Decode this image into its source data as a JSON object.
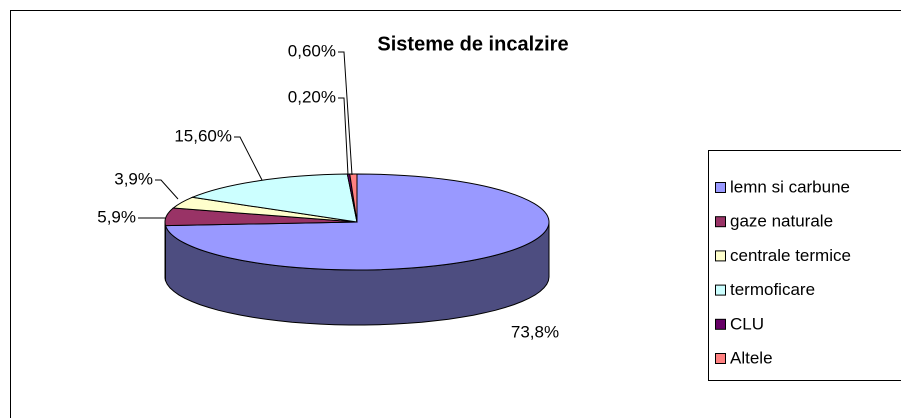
{
  "chart_data": {
    "type": "pie",
    "title": "Sisteme de incalzire",
    "categories": [
      "lemn si carbune",
      "gaze naturale",
      "centrale termice",
      "termoficare",
      "CLU",
      "Altele"
    ],
    "values": [
      73.8,
      5.9,
      3.9,
      15.6,
      0.2,
      0.6
    ],
    "value_labels": [
      "73,8%",
      "5,9%",
      "3,9%",
      "15,60%",
      "0,20%",
      "0,60%"
    ],
    "colors": [
      "#9999ff",
      "#993366",
      "#ffffcc",
      "#ccffff",
      "#660066",
      "#ff8080"
    ],
    "legend": "right"
  }
}
